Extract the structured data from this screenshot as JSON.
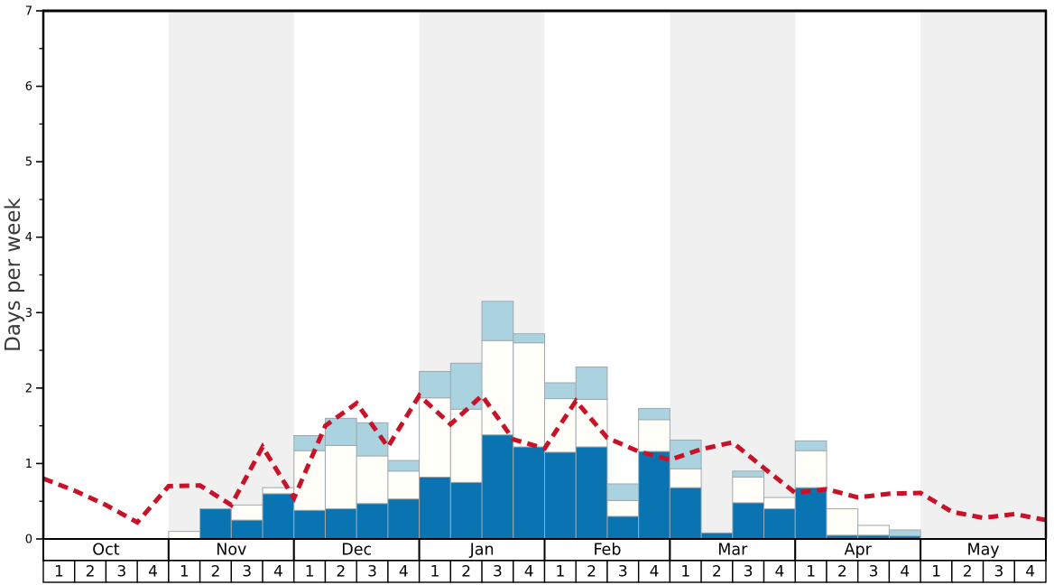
{
  "chart_data": {
    "type": "bar",
    "subtype": "stacked-bars-with-dashed-line",
    "title": "",
    "ylabel": "Days per week",
    "ylim": [
      0,
      7
    ],
    "yticks": [
      "0",
      "1",
      "2",
      "3",
      "4",
      "5",
      "6",
      "7"
    ],
    "minor_tick_interval": 0.5,
    "grid": "off",
    "legend": "none",
    "months": [
      "Oct",
      "Nov",
      "Dec",
      "Jan",
      "Feb",
      "Mar",
      "Apr",
      "May"
    ],
    "week_labels": [
      "1",
      "2",
      "3",
      "4"
    ],
    "weeks_per_month": 4,
    "shaded_months": [
      "Nov",
      "Jan",
      "Mar",
      "May"
    ],
    "categories": [
      "Oct-1",
      "Oct-2",
      "Oct-3",
      "Oct-4",
      "Nov-1",
      "Nov-2",
      "Nov-3",
      "Nov-4",
      "Dec-1",
      "Dec-2",
      "Dec-3",
      "Dec-4",
      "Jan-1",
      "Jan-2",
      "Jan-3",
      "Jan-4",
      "Feb-1",
      "Feb-2",
      "Feb-3",
      "Feb-4",
      "Mar-1",
      "Mar-2",
      "Mar-3",
      "Mar-4",
      "Apr-1",
      "Apr-2",
      "Apr-3",
      "Apr-4",
      "May-1",
      "May-2",
      "May-3",
      "May-4"
    ],
    "series": [
      {
        "name": "dark-blue-segment",
        "color": "#0a74b2",
        "values": [
          0,
          0,
          0,
          0,
          0,
          0.4,
          0.25,
          0.6,
          0.38,
          0.4,
          0.47,
          0.53,
          0.82,
          0.75,
          1.38,
          1.22,
          1.15,
          1.22,
          0.3,
          1.16,
          0.68,
          0.08,
          0.48,
          0.4,
          0.68,
          0.05,
          0.05,
          0.04,
          0,
          0,
          0,
          0
        ]
      },
      {
        "name": "white-segment",
        "color": "#fffef8",
        "values": [
          0,
          0,
          0,
          0,
          0.1,
          0,
          0.2,
          0.08,
          0.79,
          0.84,
          0.63,
          0.37,
          1.05,
          0.97,
          1.25,
          1.38,
          0.71,
          0.63,
          0.21,
          0.42,
          0.25,
          0,
          0.34,
          0.15,
          0.49,
          0.35,
          0.13,
          0,
          0,
          0,
          0,
          0
        ]
      },
      {
        "name": "light-blue-segment",
        "color": "#abd3df",
        "values": [
          0,
          0,
          0,
          0,
          0,
          0,
          0,
          0,
          0.2,
          0.36,
          0.44,
          0.14,
          0.35,
          0.61,
          0.52,
          0.12,
          0.21,
          0.43,
          0.22,
          0.15,
          0.38,
          0,
          0.08,
          0,
          0.13,
          0,
          0,
          0.08,
          0,
          0,
          0,
          0
        ]
      }
    ],
    "line": {
      "name": "red-dashed-trend-line",
      "color": "#c81228",
      "style": "dashed",
      "x_positions": "week-boundaries",
      "values": [
        0.8,
        0.64,
        0.45,
        0.22,
        0.7,
        0.71,
        0.45,
        1.22,
        0.54,
        1.5,
        1.8,
        1.22,
        1.9,
        1.52,
        1.9,
        1.32,
        1.2,
        1.83,
        1.34,
        1.16,
        1.05,
        1.19,
        1.28,
        0.94,
        0.61,
        0.66,
        0.55,
        0.6,
        0.61,
        0.36,
        0.28,
        0.33,
        0.25
      ]
    },
    "layout_hints": {
      "band_color": "#f0f0f0",
      "bar_border_color": "#9fa8ae",
      "axis_color": "#000000",
      "baseline_color": "#808080",
      "ylabel_color": "#3a3a3a",
      "legend_position": "none"
    }
  }
}
